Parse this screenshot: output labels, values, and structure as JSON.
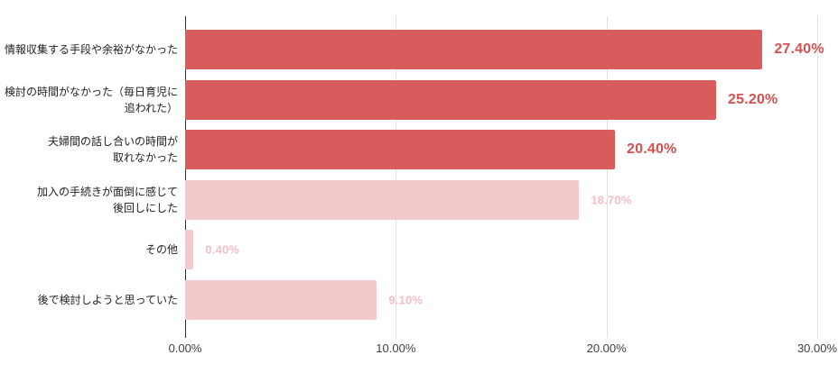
{
  "chart_data": {
    "type": "bar",
    "orientation": "horizontal",
    "title": "",
    "categories": [
      "情報収集する手段や余裕がなかった",
      "検討の時間がなかった（毎日育児に\n追われた）",
      "夫婦間の話し合いの時間が\n取れなかった",
      "加入の手続きが面倒に感じて\n後回しにした",
      "その他",
      "後で検討しようと思っていた"
    ],
    "values": [
      27.4,
      25.2,
      20.4,
      18.7,
      0.4,
      9.1
    ],
    "value_labels": [
      "27.40%",
      "25.20%",
      "20.40%",
      "18.70%",
      "0.40%",
      "9.10%"
    ],
    "emphasized": [
      true,
      true,
      true,
      false,
      false,
      false
    ],
    "xlim": [
      0,
      30
    ],
    "x_ticks": [
      {
        "value": 0,
        "label": "0.00%"
      },
      {
        "value": 10,
        "label": "10.00%"
      },
      {
        "value": 20,
        "label": "20.00%"
      },
      {
        "value": 30,
        "label": "30.00%"
      }
    ],
    "grid": "vertical-gridlines",
    "legend": "none",
    "colors": {
      "bar_emphasis": "#D95C5C",
      "bar_muted": "#F4C9CC",
      "value_emphasis": "#D5504E",
      "value_muted": "#F2BFC3",
      "axis_line": "#303030",
      "gridline": "#DFDFDF",
      "tick_text": "#3F3F3F",
      "category_text": "#1E1E1E"
    }
  }
}
